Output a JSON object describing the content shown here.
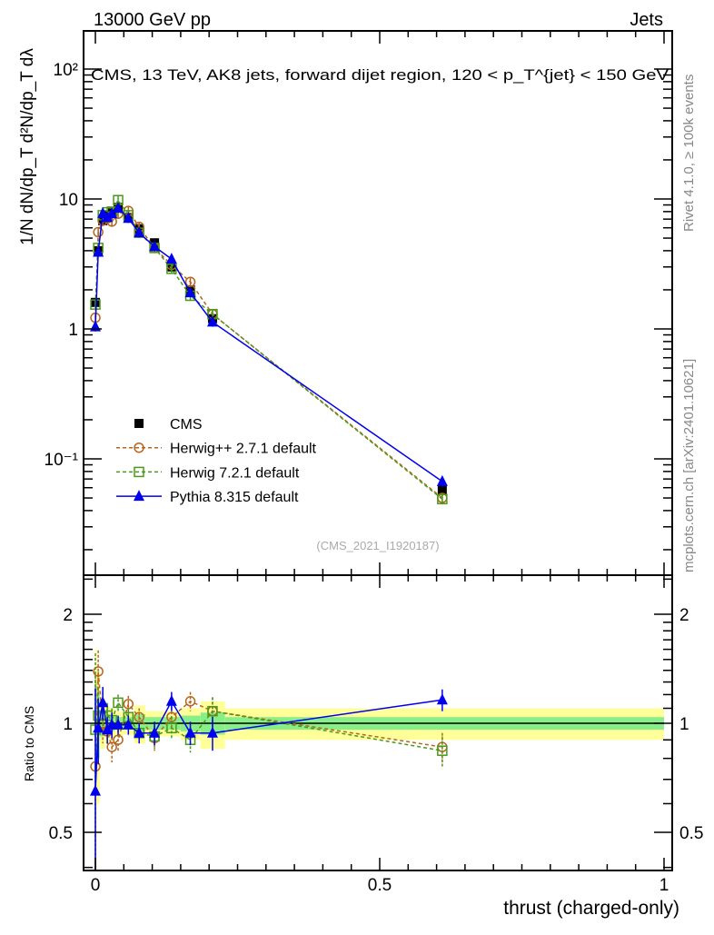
{
  "header": {
    "left": "13000 GeV pp",
    "right": "Jets"
  },
  "side_text": {
    "rivet": "Rivet 4.1.0, ≥ 100k events",
    "mcplots": "mcplots.cern.ch [arXiv:2401.10621]"
  },
  "watermark": "(CMS_2021_I1920187)",
  "chart_data": {
    "type": "line",
    "title": "CMS, 13 TeV, AK8 jets, forward dijet region, 120 < p_T^{jet} < 150 GeV",
    "xlabel": "thrust (charged-only)",
    "ylabel": "1/N dN/dp_T  d²N/dp_T dλ",
    "ratio_ylabel": "Ratio to CMS",
    "xlim": [
      -0.021,
      1.014
    ],
    "ylim": [
      0.0126,
      195
    ],
    "yscale": "log",
    "ratio_ylim": [
      0.39,
      2.56
    ],
    "x_ticks": [
      {
        "v": 0,
        "label": "0"
      },
      {
        "v": 0.5,
        "label": "0.5"
      },
      {
        "v": 1,
        "label": "1"
      }
    ],
    "y_ticks": [
      {
        "v": 0.1,
        "label": "10⁻¹"
      },
      {
        "v": 1,
        "label": "1"
      },
      {
        "v": 10,
        "label": "10"
      },
      {
        "v": 100,
        "label": "10²"
      }
    ],
    "ratio_ticks": [
      {
        "v": 0.5,
        "label": "0.5"
      },
      {
        "v": 1,
        "label": "1"
      },
      {
        "v": 2,
        "label": "2"
      }
    ],
    "legend_position": "center-left",
    "x": [
      0,
      0.005,
      0.013,
      0.021,
      0.029,
      0.04,
      0.058,
      0.077,
      0.104,
      0.134,
      0.167,
      0.206,
      0.61
    ],
    "bin_edges": [
      0,
      0.0025,
      0.0075,
      0.017,
      0.025,
      0.034,
      0.048,
      0.068,
      0.088,
      0.12,
      0.15,
      0.185,
      0.228,
      1.0
    ],
    "band_outer": [
      0.6,
      0.4,
      0.15,
      0.12,
      0.1,
      0.08,
      0.07,
      0.12,
      0.08,
      0.08,
      0.1,
      0.15,
      0.1
    ],
    "band_inner": [
      0.3,
      0.2,
      0.08,
      0.06,
      0.05,
      0.04,
      0.04,
      0.06,
      0.04,
      0.04,
      0.05,
      0.07,
      0.04
    ],
    "series": [
      {
        "name": "CMS",
        "color": "#000000",
        "marker": "filled-square",
        "dash": "none",
        "values": [
          1.6,
          4.0,
          6.8,
          7.5,
          7.8,
          8.6,
          7.2,
          5.9,
          4.6,
          3.0,
          2.0,
          1.2,
          0.058
        ],
        "ratio": [
          1,
          1,
          1,
          1,
          1,
          1,
          1,
          1,
          1,
          1,
          1,
          1,
          1
        ],
        "ratio_err": [
          0,
          0,
          0,
          0,
          0,
          0,
          0,
          0,
          0,
          0,
          0,
          0,
          0
        ]
      },
      {
        "name": "Herwig++ 2.7.1 default",
        "color": "#b5651d",
        "marker": "open-circle",
        "dash": "4,3",
        "values": [
          1.22,
          5.56,
          6.8,
          7.1,
          6.7,
          7.7,
          8.1,
          6.1,
          4.2,
          3.1,
          2.3,
          1.3,
          0.05
        ],
        "ratio": [
          0.76,
          1.39,
          1.0,
          0.95,
          0.86,
          0.9,
          1.13,
          1.04,
          0.91,
          1.04,
          1.15,
          1.08,
          0.86
        ],
        "ratio_err": [
          0.6,
          0.2,
          0.12,
          0.08,
          0.08,
          0.06,
          0.06,
          0.06,
          0.07,
          0.07,
          0.07,
          0.1,
          0.08
        ]
      },
      {
        "name": "Herwig 7.2.1 default",
        "color": "#4a9a1a",
        "marker": "open-square",
        "dash": "4,3",
        "values": [
          1.54,
          4.2,
          7.5,
          7.9,
          8.0,
          9.8,
          7.5,
          5.5,
          4.2,
          2.9,
          1.8,
          1.3,
          0.049
        ],
        "ratio": [
          0.96,
          1.05,
          1.1,
          1.05,
          1.02,
          1.14,
          1.04,
          0.94,
          0.92,
          0.97,
          0.9,
          1.08,
          0.84
        ],
        "ratio_err": [
          0.6,
          0.2,
          0.12,
          0.08,
          0.08,
          0.06,
          0.06,
          0.06,
          0.07,
          0.07,
          0.07,
          0.1,
          0.08
        ]
      },
      {
        "name": "Pythia 8.315 default",
        "color": "#0000ee",
        "marker": "filled-triangle",
        "dash": "none",
        "values": [
          1.04,
          3.9,
          7.75,
          7.2,
          7.7,
          8.5,
          7.1,
          5.5,
          4.3,
          3.45,
          1.9,
          1.13,
          0.067
        ],
        "ratio": [
          0.65,
          0.97,
          1.14,
          0.96,
          0.99,
          0.99,
          0.99,
          0.94,
          0.94,
          1.15,
          0.94,
          0.94,
          1.16
        ],
        "ratio_err": [
          0.6,
          0.2,
          0.12,
          0.08,
          0.08,
          0.06,
          0.06,
          0.06,
          0.07,
          0.07,
          0.07,
          0.1,
          0.08
        ]
      }
    ]
  }
}
